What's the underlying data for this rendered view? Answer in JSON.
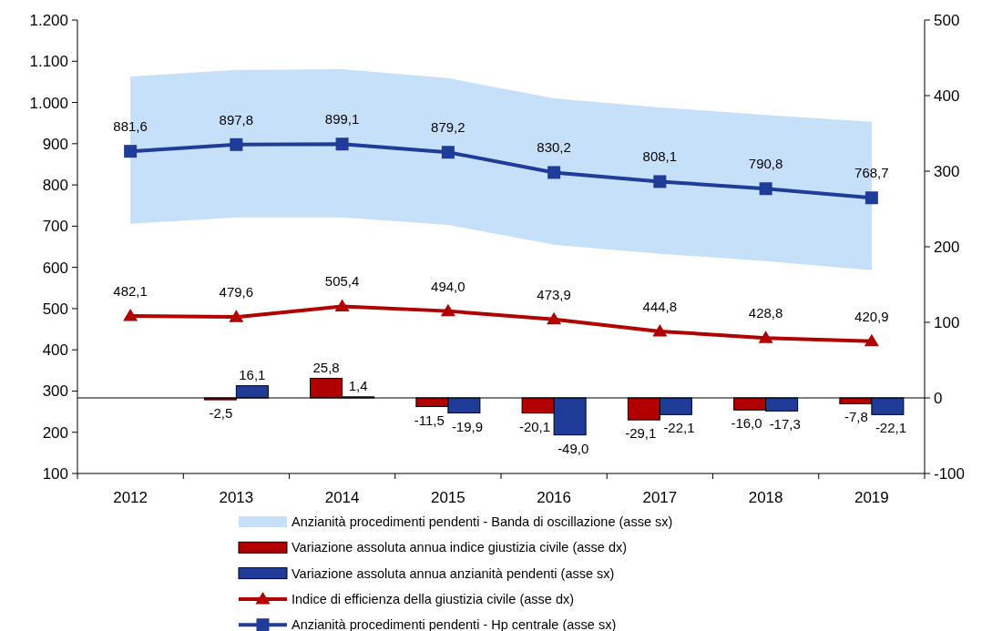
{
  "chart_data": {
    "type": "bar",
    "categories": [
      "2012",
      "2013",
      "2014",
      "2015",
      "2016",
      "2017",
      "2018",
      "2019"
    ],
    "ylim": [
      100,
      1200
    ],
    "yticks": [
      100,
      200,
      300,
      400,
      500,
      600,
      700,
      800,
      900,
      {
        "value": 1000,
        "label": "1.000"
      },
      {
        "value": 1100,
        "label": "1.100"
      },
      {
        "value": 1200,
        "label": "1.200"
      }
    ],
    "y2lim": [
      -100,
      500
    ],
    "y2ticks": [
      -100,
      0,
      100,
      200,
      300,
      400,
      500
    ],
    "legend": "bottom",
    "ref_lines": [
      {
        "axis": "y2",
        "value": 0
      }
    ],
    "series": [
      {
        "type": "area",
        "axis": "y",
        "name": "Anzianità procedimenti pendenti - Banda di oscillazione (asse sx)",
        "color": "#c6e0fa",
        "values": [
          null,
          null,
          null,
          null,
          null,
          null,
          null,
          null
        ],
        "lower": [
          706,
          721,
          721,
          703,
          655,
          633,
          615,
          593
        ],
        "upper": [
          1063,
          1079,
          1081,
          1059,
          1010,
          988,
          970,
          953
        ]
      },
      {
        "axis": "y2",
        "name": "Variazione assoluta annua indice giustizia civile (asse dx)",
        "color": "#b00000",
        "values": [
          null,
          -2.5,
          25.8,
          -11.5,
          -20.1,
          -29.1,
          -16.0,
          -7.8
        ],
        "value_labels": [
          null,
          "-2,5",
          "25,8",
          "-11,5",
          "-20,1",
          "-29,1",
          "-16,0",
          "-7,8"
        ]
      },
      {
        "axis": "y2",
        "name": "Variazione assoluta annua anzianità pendenti (asse sx)",
        "color": "#1f3c99",
        "values": [
          null,
          16.1,
          1.4,
          -19.9,
          -49.0,
          -22.1,
          -17.3,
          -22.1
        ],
        "value_labels": [
          null,
          "16,1",
          "1,4",
          "-19,9",
          "-49,0",
          "-22,1",
          "-17,3",
          "-22,1"
        ]
      },
      {
        "type": "line",
        "axis": "y",
        "marker": "triangle",
        "name": "Indice di efficienza della giustizia civile (asse dx)",
        "color": "#b00000",
        "values": [
          482.1,
          479.6,
          505.4,
          494.0,
          473.9,
          444.8,
          428.8,
          420.9
        ],
        "value_labels": [
          "482,1",
          "479,6",
          "505,4",
          "494,0",
          "473,9",
          "444,8",
          "428,8",
          "420,9"
        ]
      },
      {
        "type": "line",
        "axis": "y",
        "marker": "square",
        "name": "Anzianità procedimenti pendenti - Hp centrale (asse sx)",
        "color": "#1f3c99",
        "values": [
          881.6,
          897.8,
          899.1,
          879.2,
          830.2,
          808.1,
          790.8,
          768.7
        ],
        "value_labels": [
          "881,6",
          "897,8",
          "899,1",
          "879,2",
          "830,2",
          "808,1",
          "790,8",
          "768,7"
        ]
      }
    ]
  }
}
